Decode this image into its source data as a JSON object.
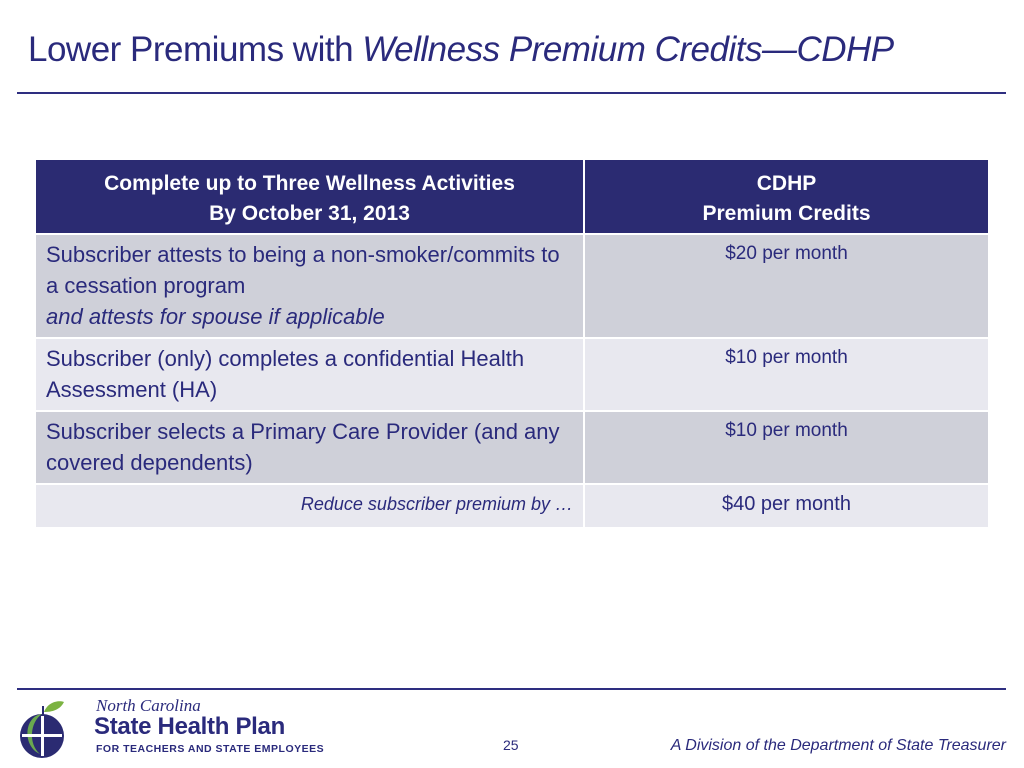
{
  "title": {
    "plain": "Lower Premiums with ",
    "italic": "Wellness Premium Credits—CDHP"
  },
  "table": {
    "header": {
      "col1_line1": "Complete up to Three Wellness Activities",
      "col1_line2": "By October 31, 2013",
      "col2_line1": "CDHP",
      "col2_line2": "Premium Credits"
    },
    "rows": [
      {
        "desc": "Subscriber attests to being a non-smoker/commits to a cessation program",
        "desc_italic": "and attests for spouse if applicable",
        "value": "$20 per month"
      },
      {
        "desc": "Subscriber (only) completes a confidential Health Assessment (HA)",
        "value": "$10 per month"
      },
      {
        "desc": "Subscriber selects a Primary Care Provider (and any covered dependents)",
        "value": "$10 per month"
      }
    ],
    "total": {
      "label": "Reduce subscriber premium by …",
      "value": "$40 per month"
    }
  },
  "footer": {
    "logo_script": "North Carolina",
    "logo_name": "State Health Plan",
    "logo_tagline": "FOR TEACHERS AND STATE EMPLOYEES",
    "page_number": "25",
    "division": "A Division of the Department of State Treasurer"
  },
  "colors": {
    "title": "#2a2a7c",
    "header_bg": "#2b2b72",
    "row_dark": "#cfd0d9",
    "row_light": "#e8e8ef"
  }
}
